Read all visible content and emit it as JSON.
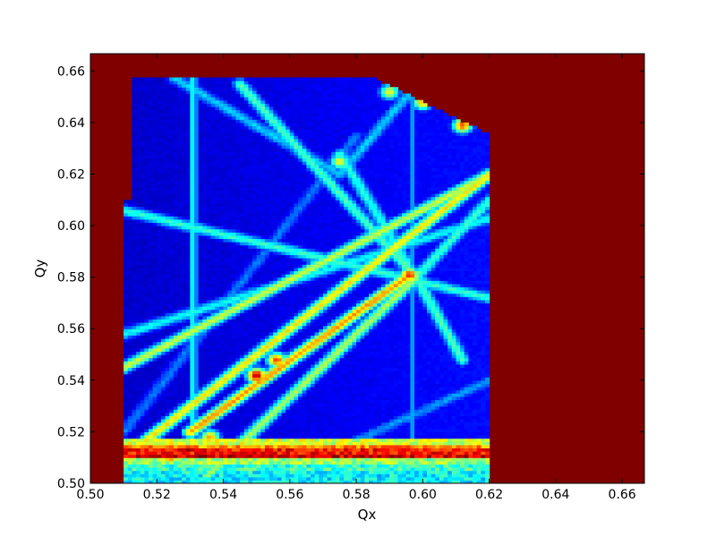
{
  "chart_data": {
    "type": "heatmap",
    "title": "",
    "xlabel": "Qx",
    "ylabel": "Qy",
    "xlim": [
      0.5,
      0.6667
    ],
    "ylim": [
      0.5,
      0.6667
    ],
    "colormap": "jet",
    "background_color": "#800000",
    "xticks": [
      "0.50",
      "0.52",
      "0.54",
      "0.56",
      "0.58",
      "0.60",
      "0.62",
      "0.64",
      "0.66"
    ],
    "yticks": [
      "0.50",
      "0.52",
      "0.54",
      "0.56",
      "0.58",
      "0.60",
      "0.62",
      "0.64",
      "0.66"
    ],
    "xtick_values": [
      0.5,
      0.52,
      0.54,
      0.56,
      0.58,
      0.6,
      0.62,
      0.64,
      0.66
    ],
    "ytick_values": [
      0.5,
      0.52,
      0.54,
      0.56,
      0.58,
      0.6,
      0.62,
      0.64,
      0.66
    ],
    "data_region": {
      "qx_min": 0.51,
      "qx_max": 0.62,
      "qy_min": 0.5,
      "qy_max": 0.6575,
      "left_step_qx": 0.5125,
      "left_step_qy": 0.61,
      "corner_cut_line": [
        [
          0.585,
          0.6575
        ],
        [
          0.6215,
          0.6345
        ]
      ]
    },
    "resonance_lines": [
      {
        "from": [
          0.51,
          0.51
        ],
        "to": [
          0.62,
          0.62
        ],
        "intensity": 0.62
      },
      {
        "from": [
          0.51,
          0.545
        ],
        "to": [
          0.62,
          0.62
        ],
        "intensity": 0.55
      },
      {
        "from": [
          0.53,
          0.52
        ],
        "to": [
          0.595,
          0.58
        ],
        "intensity": 0.7
      },
      {
        "from": [
          0.51,
          0.606
        ],
        "to": [
          0.62,
          0.572
        ],
        "intensity": 0.4
      },
      {
        "from": [
          0.51,
          0.558
        ],
        "to": [
          0.62,
          0.603
        ],
        "intensity": 0.36
      },
      {
        "from": [
          0.535,
          0.503
        ],
        "to": [
          0.598,
          0.58
        ],
        "intensity": 0.52
      },
      {
        "from": [
          0.598,
          0.58
        ],
        "to": [
          0.612,
          0.548
        ],
        "intensity": 0.42
      },
      {
        "from": [
          0.598,
          0.58
        ],
        "to": [
          0.62,
          0.61
        ],
        "intensity": 0.4
      },
      {
        "from": [
          0.598,
          0.58
        ],
        "to": [
          0.575,
          0.628
        ],
        "intensity": 0.38
      },
      {
        "from": [
          0.545,
          0.655
        ],
        "to": [
          0.598,
          0.58
        ],
        "intensity": 0.42
      },
      {
        "from": [
          0.525,
          0.6575
        ],
        "to": [
          0.575,
          0.62
        ],
        "intensity": 0.3
      },
      {
        "from": [
          0.575,
          0.62
        ],
        "to": [
          0.6,
          0.6575
        ],
        "intensity": 0.3
      },
      {
        "from": [
          0.51,
          0.52
        ],
        "to": [
          0.58,
          0.635
        ],
        "intensity": 0.22
      },
      {
        "from": [
          0.56,
          0.505
        ],
        "to": [
          0.62,
          0.54
        ],
        "intensity": 0.25
      }
    ],
    "vertical_lines": [
      {
        "qx": 0.531,
        "intensity": 0.4
      },
      {
        "qx": 0.597,
        "intensity": 0.28
      }
    ],
    "horizontal_bands": [
      {
        "qy": 0.5165,
        "intensity": 0.58
      },
      {
        "qy": 0.5145,
        "intensity": 0.74
      },
      {
        "qy": 0.5125,
        "intensity": 0.86
      },
      {
        "qy": 0.5105,
        "intensity": 0.92
      },
      {
        "qy": 0.5085,
        "intensity": 0.52
      },
      {
        "qy": 0.5065,
        "intensity": 0.42
      },
      {
        "qy": 0.5045,
        "intensity": 0.38
      },
      {
        "qy": 0.5025,
        "intensity": 0.36
      }
    ],
    "hot_spots": [
      {
        "qx": 0.596,
        "qy": 0.581,
        "intensity": 0.85
      },
      {
        "qx": 0.529,
        "qy": 0.513,
        "intensity": 1.0
      },
      {
        "qx": 0.524,
        "qy": 0.511,
        "intensity": 0.95
      },
      {
        "qx": 0.536,
        "qy": 0.518,
        "intensity": 0.72
      },
      {
        "qx": 0.575,
        "qy": 0.625,
        "intensity": 0.62
      },
      {
        "qx": 0.59,
        "qy": 0.652,
        "intensity": 0.62
      },
      {
        "qx": 0.6,
        "qy": 0.648,
        "intensity": 0.7
      },
      {
        "qx": 0.612,
        "qy": 0.639,
        "intensity": 0.8
      },
      {
        "qx": 0.55,
        "qy": 0.542,
        "intensity": 0.95
      },
      {
        "qx": 0.556,
        "qy": 0.548,
        "intensity": 0.82
      }
    ]
  }
}
